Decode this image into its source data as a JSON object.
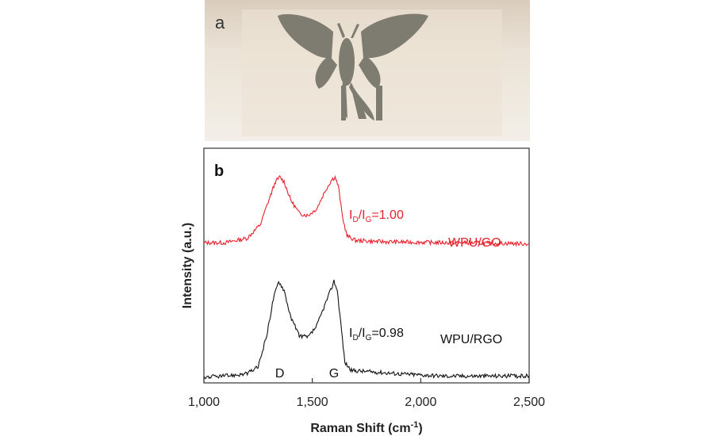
{
  "panel_a": {
    "label": "a"
  },
  "chart_data": {
    "type": "line",
    "panel_label": "b",
    "xlabel": "Raman Shift (cm",
    "xlabel_sup": "-1",
    "xlabel_end": ")",
    "ylabel": "Intensity (a.u.)",
    "xlim": [
      1000,
      2500
    ],
    "ylim": [
      0,
      1
    ],
    "grid": false,
    "xticks": [
      1000,
      1500,
      2000,
      2500
    ],
    "xtick_labels": [
      "1,000",
      "1,500",
      "2,000",
      "2,500"
    ],
    "peak_labels": [
      {
        "text": "D",
        "x": 1350
      },
      {
        "text": "G",
        "x": 1600
      }
    ],
    "series": [
      {
        "name": "WPU/GO",
        "color": "#e8202a",
        "ratio_prefix": "I",
        "ratio_sub1": "D",
        "ratio_mid": "/I",
        "ratio_sub2": "G",
        "ratio_value": "=1.00",
        "label_anchor_x": 2050,
        "points": [
          [
            1000,
            0.61
          ],
          [
            1100,
            0.61
          ],
          [
            1200,
            0.63
          ],
          [
            1260,
            0.69
          ],
          [
            1300,
            0.8
          ],
          [
            1330,
            0.88
          ],
          [
            1350,
            0.9
          ],
          [
            1370,
            0.88
          ],
          [
            1400,
            0.8
          ],
          [
            1440,
            0.74
          ],
          [
            1480,
            0.73
          ],
          [
            1520,
            0.76
          ],
          [
            1560,
            0.84
          ],
          [
            1590,
            0.89
          ],
          [
            1605,
            0.9
          ],
          [
            1620,
            0.86
          ],
          [
            1640,
            0.72
          ],
          [
            1660,
            0.64
          ],
          [
            1700,
            0.62
          ],
          [
            1800,
            0.615
          ],
          [
            1900,
            0.613
          ],
          [
            2000,
            0.612
          ],
          [
            2100,
            0.61
          ],
          [
            2200,
            0.61
          ],
          [
            2300,
            0.608
          ],
          [
            2400,
            0.607
          ],
          [
            2500,
            0.605
          ]
        ]
      },
      {
        "name": "WPU/RGO",
        "color": "#111111",
        "ratio_prefix": "I",
        "ratio_sub1": "D",
        "ratio_mid": "/I",
        "ratio_sub2": "G",
        "ratio_value": "=0.98",
        "label_anchor_x": 2050,
        "points": [
          [
            1000,
            0.015
          ],
          [
            1100,
            0.02
          ],
          [
            1200,
            0.03
          ],
          [
            1250,
            0.06
          ],
          [
            1290,
            0.2
          ],
          [
            1320,
            0.36
          ],
          [
            1345,
            0.44
          ],
          [
            1370,
            0.4
          ],
          [
            1400,
            0.28
          ],
          [
            1440,
            0.2
          ],
          [
            1480,
            0.19
          ],
          [
            1520,
            0.24
          ],
          [
            1560,
            0.34
          ],
          [
            1585,
            0.4
          ],
          [
            1600,
            0.44
          ],
          [
            1615,
            0.4
          ],
          [
            1635,
            0.22
          ],
          [
            1650,
            0.08
          ],
          [
            1680,
            0.045
          ],
          [
            1750,
            0.04
          ],
          [
            1800,
            0.037
          ],
          [
            1900,
            0.03
          ],
          [
            2000,
            0.025
          ],
          [
            2100,
            0.02
          ],
          [
            2200,
            0.02
          ],
          [
            2300,
            0.02
          ],
          [
            2400,
            0.02
          ],
          [
            2500,
            0.02
          ]
        ]
      }
    ]
  }
}
